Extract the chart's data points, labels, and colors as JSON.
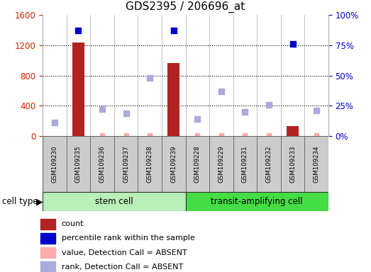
{
  "title": "GDS2395 / 206696_at",
  "samples": [
    "GSM109230",
    "GSM109235",
    "GSM109236",
    "GSM109237",
    "GSM109238",
    "GSM109239",
    "GSM109228",
    "GSM109229",
    "GSM109231",
    "GSM109232",
    "GSM109233",
    "GSM109234"
  ],
  "count_values": [
    0,
    1240,
    0,
    0,
    0,
    960,
    0,
    0,
    0,
    0,
    130,
    0
  ],
  "count_absent": [
    true,
    false,
    true,
    true,
    true,
    false,
    true,
    true,
    true,
    true,
    false,
    true
  ],
  "rank_present_values": [
    null,
    87,
    null,
    null,
    null,
    87,
    null,
    null,
    null,
    null,
    76,
    null
  ],
  "rank_absent_values": [
    11,
    null,
    22,
    19,
    48,
    null,
    14,
    37,
    20,
    26,
    null,
    21
  ],
  "value_absent_values": [
    null,
    null,
    5,
    5,
    5,
    null,
    5,
    5,
    5,
    5,
    null,
    5
  ],
  "ylim_left": [
    0,
    1600
  ],
  "ylim_right": [
    0,
    100
  ],
  "yticks_left": [
    0,
    400,
    800,
    1200,
    1600
  ],
  "yticks_right": [
    0,
    25,
    50,
    75,
    100
  ],
  "yticklabels_left": [
    "0",
    "400",
    "800",
    "1200",
    "1600"
  ],
  "yticklabels_right": [
    "0%",
    "25%",
    "50%",
    "75%",
    "100%"
  ],
  "color_count_present": "#b22222",
  "color_count_absent": "#ffaaaa",
  "color_rank_present": "#0000cc",
  "color_rank_absent": "#aaaadd",
  "color_cell_group1_light": "#b8f0b8",
  "color_cell_group2_dark": "#44dd44",
  "color_sample_bg": "#cccccc",
  "left_tick_color": "#cc2200",
  "right_tick_color": "#0000cc",
  "legend_items": [
    {
      "color": "#b22222",
      "label": "count"
    },
    {
      "color": "#0000cc",
      "label": "percentile rank within the sample"
    },
    {
      "color": "#ffaaaa",
      "label": "value, Detection Call = ABSENT"
    },
    {
      "color": "#aaaadd",
      "label": "rank, Detection Call = ABSENT"
    }
  ]
}
